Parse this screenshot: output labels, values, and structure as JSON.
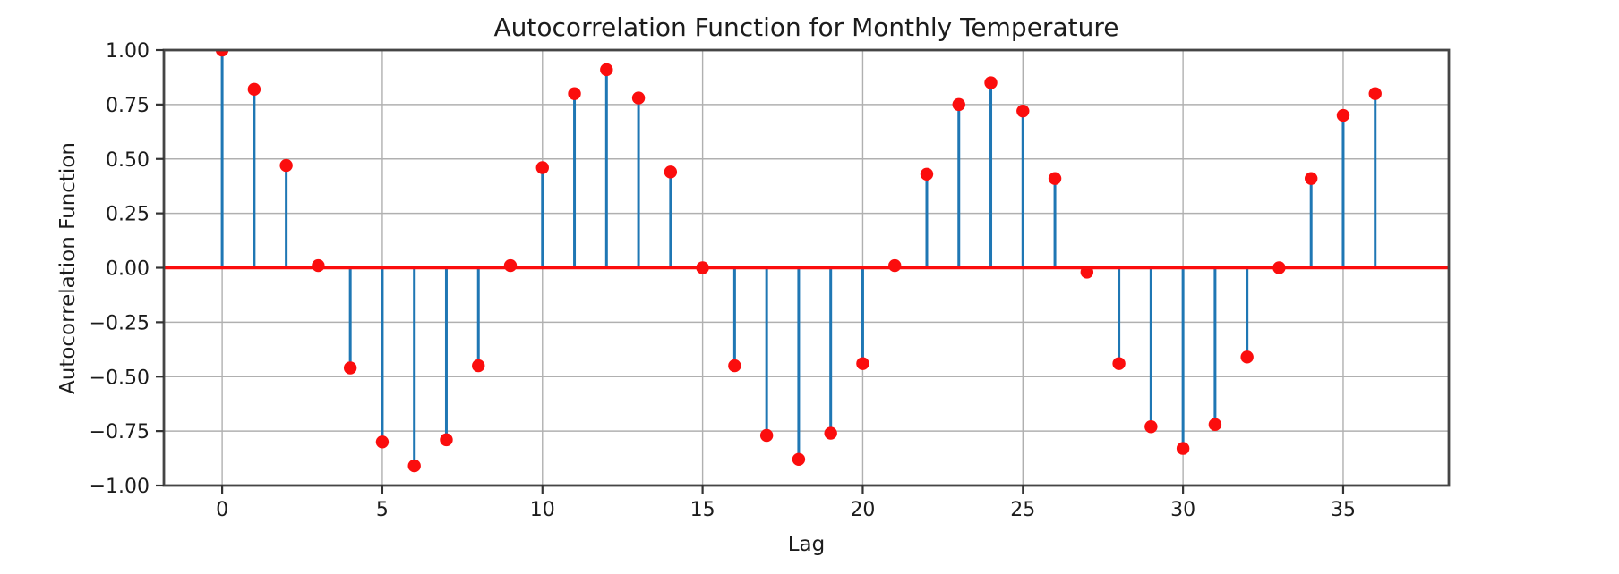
{
  "figure": {
    "title": "Autocorrelation Function for Monthly Temperature",
    "xlabel": "Lag",
    "ylabel": "Autocorrelation Function"
  },
  "chart_data": {
    "type": "scatter",
    "variant": "stem",
    "title": "Autocorrelation Function for Monthly Temperature",
    "xlabel": "Lag",
    "ylabel": "Autocorrelation Function",
    "x": [
      0,
      1,
      2,
      3,
      4,
      5,
      6,
      7,
      8,
      9,
      10,
      11,
      12,
      13,
      14,
      15,
      16,
      17,
      18,
      19,
      20,
      21,
      22,
      23,
      24,
      25,
      26,
      27,
      28,
      29,
      30,
      31,
      32,
      33,
      34,
      35,
      36
    ],
    "values": [
      1.0,
      0.82,
      0.47,
      0.01,
      -0.46,
      -0.8,
      -0.91,
      -0.79,
      -0.45,
      0.01,
      0.46,
      0.8,
      0.91,
      0.78,
      0.44,
      0.0,
      -0.45,
      -0.77,
      -0.88,
      -0.76,
      -0.44,
      0.01,
      0.43,
      0.75,
      0.85,
      0.72,
      0.41,
      -0.02,
      -0.44,
      -0.73,
      -0.83,
      -0.72,
      -0.41,
      0.0,
      0.41,
      0.7,
      0.8
    ],
    "baseline_value": 0.0,
    "xlim": [
      -1.82,
      38.3
    ],
    "ylim": [
      -1.0,
      1.0
    ],
    "xticks": [
      0,
      5,
      10,
      15,
      20,
      25,
      30,
      35
    ],
    "yticks": [
      -1.0,
      -0.75,
      -0.5,
      -0.25,
      0.0,
      0.25,
      0.5,
      0.75,
      1.0
    ],
    "grid": true,
    "legend": null,
    "colors": {
      "stem": "#1f77b4",
      "marker": "#fb0d0d",
      "baseline": "#fb0d0d",
      "grid": "#b0b0b0",
      "spine": "#454545",
      "tick": "#333333",
      "text": "#1c1c1c"
    }
  }
}
